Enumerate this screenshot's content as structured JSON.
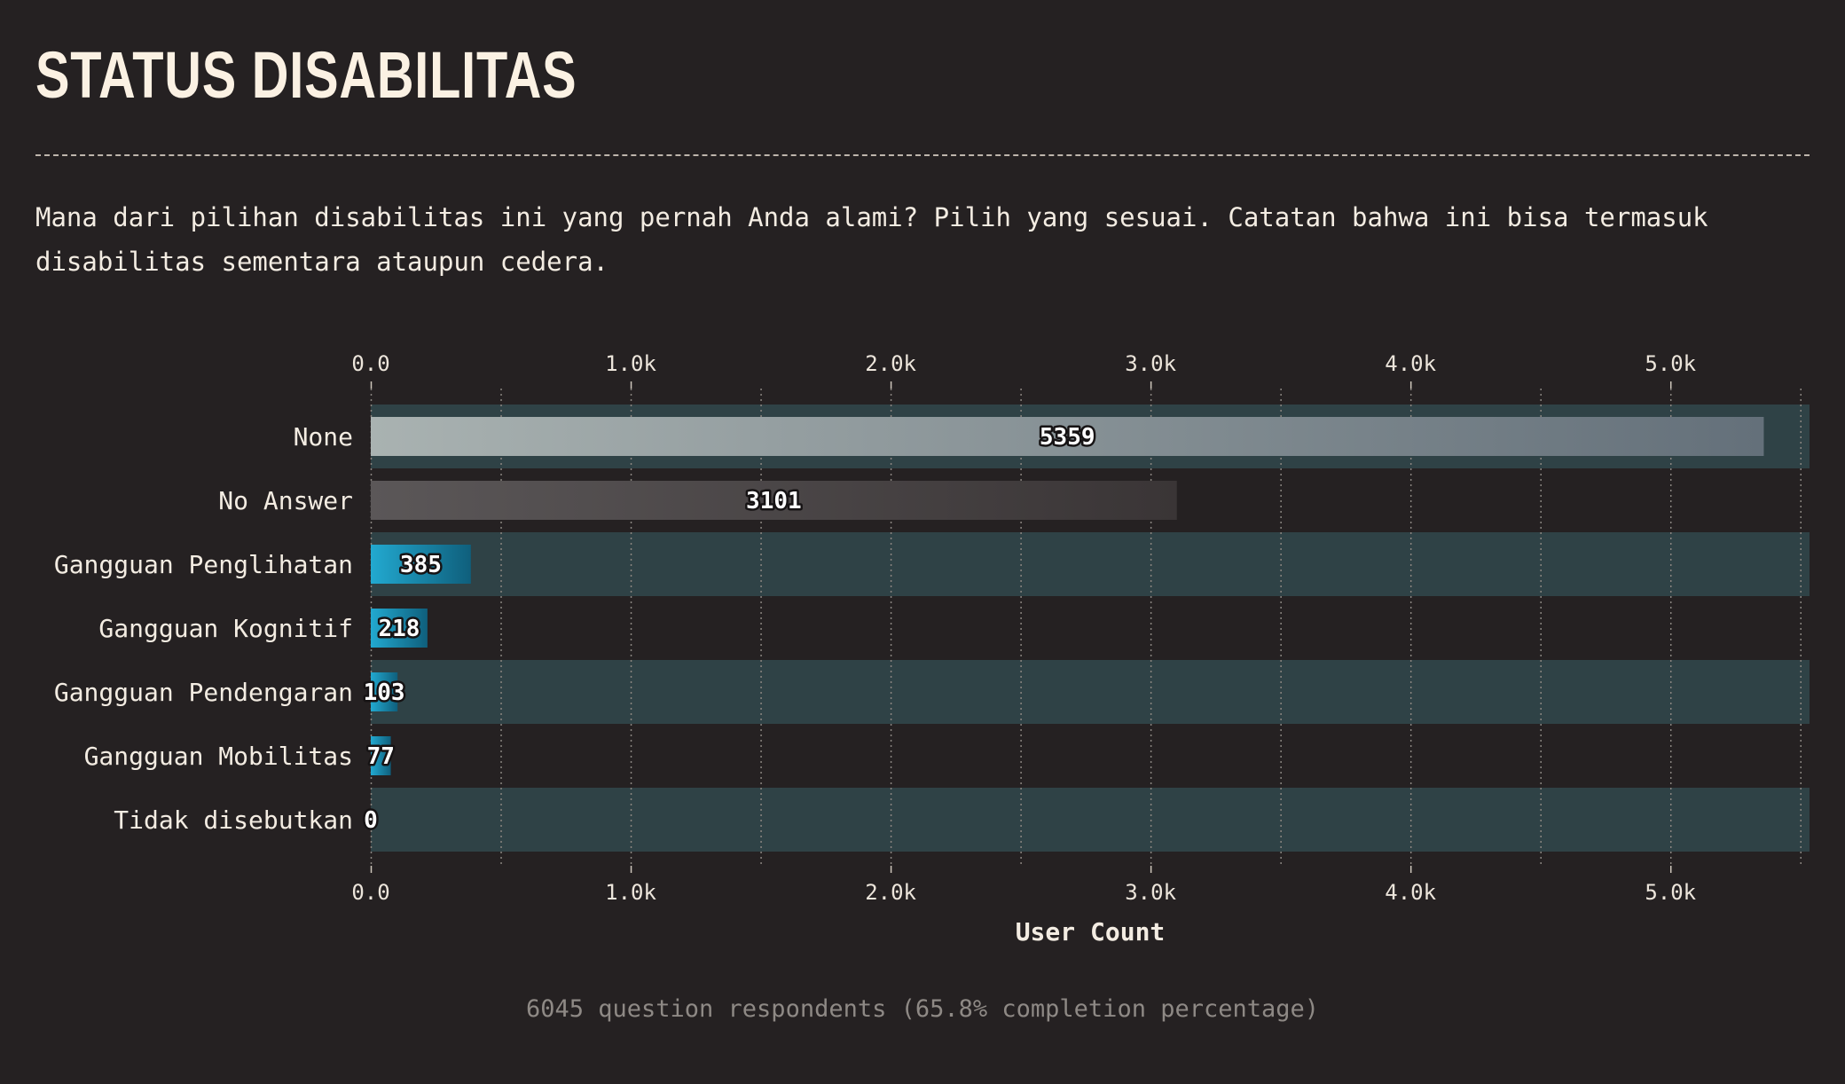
{
  "title": "STATUS DISABILITAS",
  "description": "Mana dari pilihan disabilitas ini yang pernah Anda alami? Pilih yang sesuai. Catatan bahwa ini bisa termasuk disabilitas sementara ataupun cedera.",
  "footnote": "6045 question respondents (65.8% completion percentage)",
  "colors": {
    "background": "#252122",
    "band": "#2f4246",
    "none_bar_start": "#a9b2b1",
    "none_bar_end": "#64707a",
    "noanswer_bar_start": "#5b5758",
    "noanswer_bar_end": "#3a3536",
    "accent_bar_start": "#22a9d0",
    "accent_bar_end": "#0f5f7c"
  },
  "chart_data": {
    "type": "bar",
    "orientation": "horizontal",
    "title": "STATUS DISABILITAS",
    "xlabel": "User Count",
    "ylabel": "",
    "categories": [
      "None",
      "No Answer",
      "Gangguan Penglihatan",
      "Gangguan Kognitif",
      "Gangguan Pendengaran",
      "Gangguan Mobilitas",
      "Tidak disebutkan"
    ],
    "values": [
      5359,
      3101,
      385,
      218,
      103,
      77,
      0
    ],
    "data_labels": [
      "5359",
      "3101",
      "385",
      "218",
      "103",
      "77",
      "0"
    ],
    "xlim": [
      0,
      5535
    ],
    "xticks": [
      0,
      1000,
      2000,
      3000,
      4000,
      5000
    ],
    "xtick_labels": [
      "0.0",
      "1.0k",
      "2.0k",
      "3.0k",
      "4.0k",
      "5.0k"
    ],
    "grid": "vertical dotted",
    "alternating_row_bands": true
  }
}
